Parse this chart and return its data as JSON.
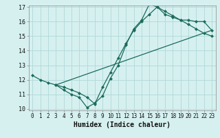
{
  "line1_x": [
    0,
    1,
    2,
    3,
    4,
    5,
    6,
    7,
    8,
    9,
    10,
    11,
    12,
    13,
    14,
    15,
    16,
    17,
    18,
    19,
    20,
    21,
    22,
    23
  ],
  "line1_y": [
    12.3,
    12.0,
    11.8,
    11.65,
    11.3,
    11.0,
    10.8,
    10.1,
    10.4,
    10.9,
    12.1,
    13.0,
    14.4,
    15.5,
    16.1,
    17.2,
    17.0,
    16.5,
    16.3,
    16.1,
    16.1,
    16.0,
    16.0,
    15.4
  ],
  "line2_x": [
    3,
    4,
    5,
    6,
    7,
    8,
    9,
    10,
    11,
    12,
    13,
    14,
    15,
    16,
    17,
    18,
    19,
    20,
    21,
    22,
    23
  ],
  "line2_y": [
    11.65,
    11.5,
    11.3,
    11.1,
    10.8,
    10.35,
    11.5,
    12.5,
    13.5,
    14.5,
    15.4,
    16.0,
    16.5,
    17.0,
    16.7,
    16.4,
    16.1,
    15.8,
    15.5,
    15.2,
    15.0
  ],
  "line3_x": [
    3,
    23
  ],
  "line3_y": [
    11.65,
    15.4
  ],
  "line_color": "#1a6b5a",
  "bg_color": "#d6f0f0",
  "grid_color": "#b0d8d8",
  "xlabel": "Humidex (Indice chaleur)",
  "ylim": [
    10,
    17
  ],
  "xlim": [
    -0.5,
    23.5
  ],
  "yticks": [
    10,
    11,
    12,
    13,
    14,
    15,
    16,
    17
  ],
  "xticks": [
    0,
    1,
    2,
    3,
    4,
    5,
    6,
    7,
    8,
    9,
    10,
    11,
    12,
    13,
    14,
    15,
    16,
    17,
    18,
    19,
    20,
    21,
    22,
    23
  ],
  "marker": "D",
  "marker_size": 2.0,
  "linewidth": 0.9,
  "xlabel_fontsize": 7,
  "tick_fontsize": 5.5
}
